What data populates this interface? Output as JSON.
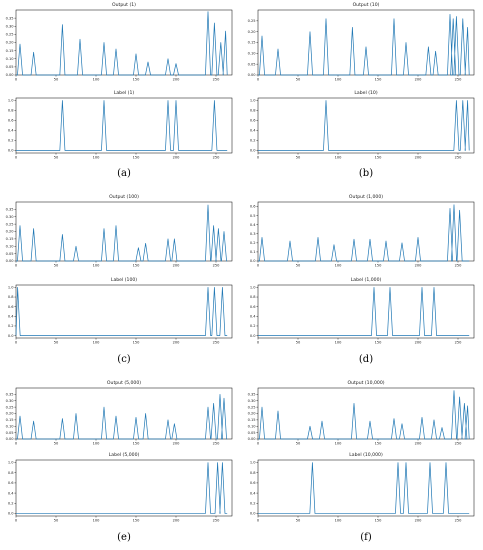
{
  "colors": {
    "line": "#1f77b4",
    "axes": "#000000",
    "background": "#ffffff"
  },
  "chart_data": [
    {
      "caption": "(a)",
      "subplots": [
        {
          "type": "line",
          "title": "Output (1)",
          "xlim": [
            0,
            270
          ],
          "ylim": [
            0,
            0.4
          ],
          "xticks": [
            0,
            50,
            100,
            150,
            200,
            250
          ],
          "yticks": [
            0.0,
            0.05,
            0.1,
            0.15,
            0.2,
            0.25,
            0.3,
            0.35
          ],
          "ytick_decimals": 2,
          "peaks": [
            [
              5,
              0.19
            ],
            [
              22,
              0.14
            ],
            [
              58,
              0.31
            ],
            [
              80,
              0.22
            ],
            [
              110,
              0.2
            ],
            [
              125,
              0.16
            ],
            [
              150,
              0.13
            ],
            [
              165,
              0.08
            ],
            [
              190,
              0.1
            ],
            [
              200,
              0.07
            ],
            [
              240,
              0.39
            ],
            [
              248,
              0.32
            ],
            [
              256,
              0.2
            ],
            [
              262,
              0.27
            ]
          ]
        },
        {
          "type": "line",
          "title": "Label (1)",
          "xlim": [
            0,
            270
          ],
          "ylim": [
            -0.05,
            1.05
          ],
          "xticks": [
            0,
            50,
            100,
            150,
            200,
            250
          ],
          "yticks": [
            0.0,
            0.2,
            0.4,
            0.6,
            0.8,
            1.0
          ],
          "ytick_decimals": 1,
          "peaks": [
            [
              58,
              1.0
            ],
            [
              110,
              1.0
            ],
            [
              190,
              1.0
            ],
            [
              200,
              1.0
            ],
            [
              248,
              1.0
            ]
          ]
        }
      ]
    },
    {
      "caption": "(b)",
      "subplots": [
        {
          "type": "line",
          "title": "Output (10)",
          "xlim": [
            0,
            270
          ],
          "ylim": [
            0,
            0.3
          ],
          "xticks": [
            0,
            50,
            100,
            150,
            200,
            250
          ],
          "yticks": [
            0.0,
            0.05,
            0.1,
            0.15,
            0.2,
            0.25
          ],
          "ytick_decimals": 2,
          "peaks": [
            [
              5,
              0.18
            ],
            [
              25,
              0.12
            ],
            [
              65,
              0.2
            ],
            [
              85,
              0.26
            ],
            [
              118,
              0.22
            ],
            [
              135,
              0.13
            ],
            [
              170,
              0.26
            ],
            [
              185,
              0.15
            ],
            [
              213,
              0.13
            ],
            [
              222,
              0.11
            ],
            [
              240,
              0.28
            ],
            [
              244,
              0.26
            ],
            [
              248,
              0.27
            ],
            [
              256,
              0.26
            ],
            [
              262,
              0.22
            ]
          ]
        },
        {
          "type": "line",
          "title": "Label (10)",
          "xlim": [
            0,
            270
          ],
          "ylim": [
            -0.05,
            1.05
          ],
          "xticks": [
            0,
            50,
            100,
            150,
            200,
            250
          ],
          "yticks": [
            0.0,
            0.2,
            0.4,
            0.6,
            0.8,
            1.0
          ],
          "ytick_decimals": 1,
          "peaks": [
            [
              85,
              1.0
            ],
            [
              248,
              1.0
            ],
            [
              256,
              1.0
            ],
            [
              262,
              1.0
            ]
          ]
        }
      ]
    },
    {
      "caption": "(c)",
      "subplots": [
        {
          "type": "line",
          "title": "Output (100)",
          "xlim": [
            0,
            270
          ],
          "ylim": [
            0,
            0.4
          ],
          "xticks": [
            0,
            50,
            100,
            150,
            200,
            250
          ],
          "yticks": [
            0.0,
            0.05,
            0.1,
            0.15,
            0.2,
            0.25,
            0.3,
            0.35
          ],
          "ytick_decimals": 2,
          "peaks": [
            [
              5,
              0.24
            ],
            [
              22,
              0.22
            ],
            [
              58,
              0.18
            ],
            [
              75,
              0.1
            ],
            [
              110,
              0.22
            ],
            [
              125,
              0.24
            ],
            [
              153,
              0.09
            ],
            [
              162,
              0.12
            ],
            [
              190,
              0.15
            ],
            [
              198,
              0.15
            ],
            [
              240,
              0.38
            ],
            [
              247,
              0.24
            ],
            [
              253,
              0.22
            ],
            [
              260,
              0.2
            ]
          ]
        },
        {
          "type": "line",
          "title": "Label (100)",
          "xlim": [
            0,
            270
          ],
          "ylim": [
            -0.05,
            1.05
          ],
          "xticks": [
            0,
            50,
            100,
            150,
            200,
            250
          ],
          "yticks": [
            0.0,
            0.2,
            0.4,
            0.6,
            0.8,
            1.0
          ],
          "ytick_decimals": 1,
          "peaks": [
            [
              2,
              1.0
            ],
            [
              240,
              1.0
            ],
            [
              248,
              1.0
            ],
            [
              258,
              1.0
            ]
          ]
        }
      ]
    },
    {
      "caption": "(d)",
      "subplots": [
        {
          "type": "line",
          "title": "Output (1,000)",
          "xlim": [
            0,
            270
          ],
          "ylim": [
            0,
            0.65
          ],
          "xticks": [
            0,
            50,
            100,
            150,
            200,
            250
          ],
          "yticks": [
            0.0,
            0.1,
            0.2,
            0.3,
            0.4,
            0.5,
            0.6
          ],
          "ytick_decimals": 1,
          "peaks": [
            [
              5,
              0.26
            ],
            [
              40,
              0.22
            ],
            [
              75,
              0.26
            ],
            [
              95,
              0.18
            ],
            [
              120,
              0.24
            ],
            [
              140,
              0.24
            ],
            [
              160,
              0.22
            ],
            [
              180,
              0.2
            ],
            [
              200,
              0.26
            ],
            [
              240,
              0.58
            ],
            [
              245,
              0.62
            ],
            [
              252,
              0.56
            ]
          ]
        },
        {
          "type": "line",
          "title": "Label (1,000)",
          "xlim": [
            0,
            270
          ],
          "ylim": [
            -0.05,
            1.05
          ],
          "xticks": [
            0,
            50,
            100,
            150,
            200,
            250
          ],
          "yticks": [
            0.0,
            0.2,
            0.4,
            0.6,
            0.8,
            1.0
          ],
          "ytick_decimals": 1,
          "peaks": [
            [
              145,
              1.0
            ],
            [
              165,
              1.0
            ],
            [
              205,
              1.0
            ],
            [
              220,
              1.0
            ]
          ]
        }
      ]
    },
    {
      "caption": "(e)",
      "subplots": [
        {
          "type": "line",
          "title": "Output (5,000)",
          "xlim": [
            0,
            270
          ],
          "ylim": [
            0,
            0.4
          ],
          "xticks": [
            0,
            50,
            100,
            150,
            200,
            250
          ],
          "yticks": [
            0.0,
            0.05,
            0.1,
            0.15,
            0.2,
            0.25,
            0.3,
            0.35
          ],
          "ytick_decimals": 2,
          "peaks": [
            [
              5,
              0.18
            ],
            [
              22,
              0.14
            ],
            [
              58,
              0.16
            ],
            [
              75,
              0.2
            ],
            [
              110,
              0.25
            ],
            [
              125,
              0.18
            ],
            [
              150,
              0.17
            ],
            [
              162,
              0.2
            ],
            [
              190,
              0.15
            ],
            [
              198,
              0.12
            ],
            [
              240,
              0.25
            ],
            [
              247,
              0.28
            ],
            [
              255,
              0.35
            ],
            [
              260,
              0.32
            ]
          ]
        },
        {
          "type": "line",
          "title": "Label (5,000)",
          "xlim": [
            0,
            270
          ],
          "ylim": [
            -0.05,
            1.05
          ],
          "xticks": [
            0,
            50,
            100,
            150,
            200,
            250
          ],
          "yticks": [
            0.0,
            0.2,
            0.4,
            0.6,
            0.8,
            1.0
          ],
          "ytick_decimals": 1,
          "peaks": [
            [
              240,
              1.0
            ],
            [
              252,
              1.0
            ],
            [
              258,
              1.0
            ]
          ]
        }
      ]
    },
    {
      "caption": "(f)",
      "subplots": [
        {
          "type": "line",
          "title": "Output (10,000)",
          "xlim": [
            0,
            270
          ],
          "ylim": [
            0,
            0.4
          ],
          "xticks": [
            0,
            50,
            100,
            150,
            200,
            250
          ],
          "yticks": [
            0.0,
            0.05,
            0.1,
            0.15,
            0.2,
            0.25,
            0.3,
            0.35
          ],
          "ytick_decimals": 2,
          "peaks": [
            [
              5,
              0.25
            ],
            [
              25,
              0.22
            ],
            [
              65,
              0.1
            ],
            [
              80,
              0.14
            ],
            [
              120,
              0.28
            ],
            [
              140,
              0.14
            ],
            [
              170,
              0.16
            ],
            [
              180,
              0.12
            ],
            [
              205,
              0.17
            ],
            [
              220,
              0.15
            ],
            [
              230,
              0.09
            ],
            [
              245,
              0.38
            ],
            [
              252,
              0.33
            ],
            [
              258,
              0.28
            ],
            [
              262,
              0.26
            ]
          ]
        },
        {
          "type": "line",
          "title": "Label (10,000)",
          "xlim": [
            0,
            270
          ],
          "ylim": [
            -0.05,
            1.05
          ],
          "xticks": [
            0,
            50,
            100,
            150,
            200,
            250
          ],
          "yticks": [
            0.0,
            0.2,
            0.4,
            0.6,
            0.8,
            1.0
          ],
          "ytick_decimals": 1,
          "peaks": [
            [
              68,
              1.0
            ],
            [
              175,
              1.0
            ],
            [
              185,
              1.0
            ],
            [
              215,
              1.0
            ],
            [
              235,
              1.0
            ]
          ]
        }
      ]
    }
  ]
}
